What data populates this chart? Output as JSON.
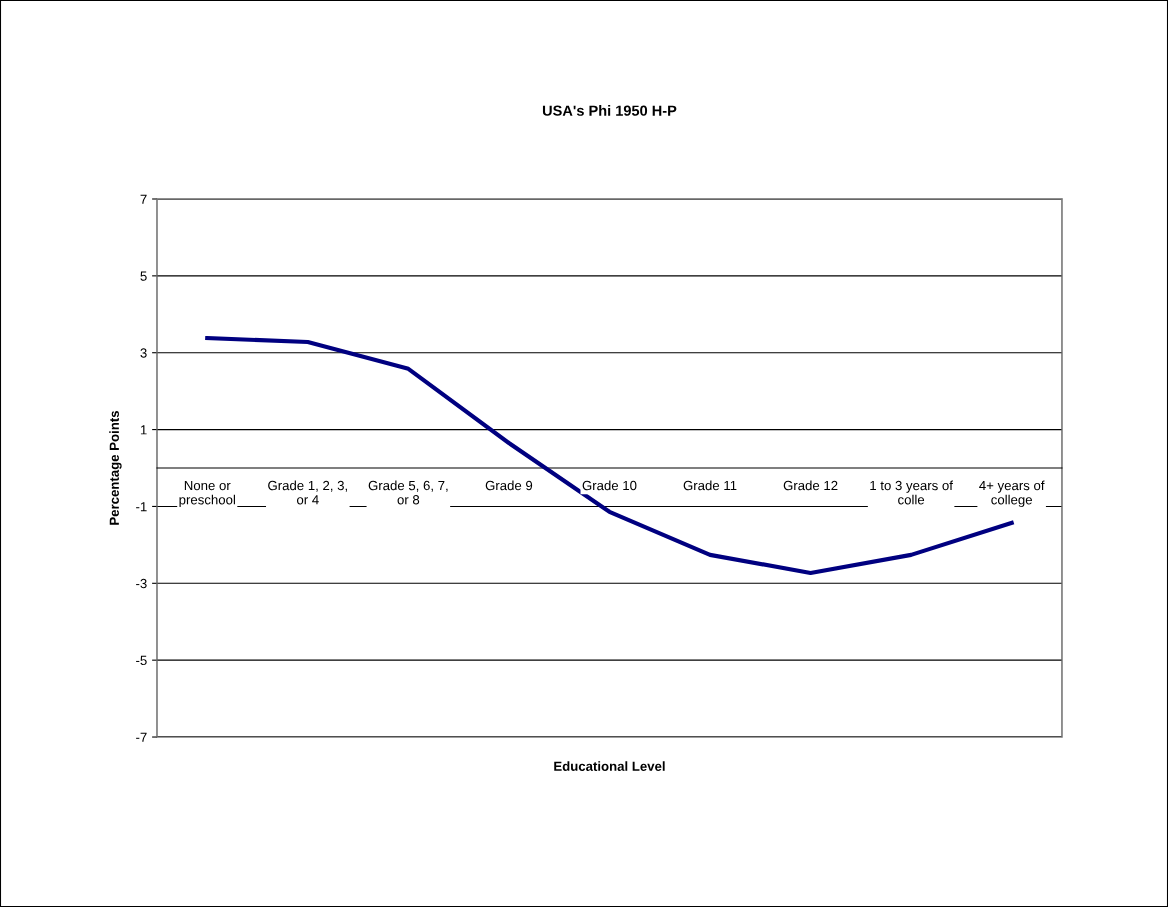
{
  "chart_data": {
    "type": "line",
    "title": "USA's Phi 1950 H-P",
    "xlabel": "Educational Level",
    "ylabel": "Percentage Points",
    "categories": [
      "None or\npreschool",
      "Grade 1, 2, 3,\nor 4",
      "Grade 5, 6, 7,\nor 8",
      "Grade 9",
      "Grade 10",
      "Grade 11",
      "Grade 12",
      "1 to 3 years of\ncolle",
      "4+ years of\ncollege"
    ],
    "series": [
      {
        "color": "#000080",
        "values": [
          3.38,
          3.28,
          2.58,
          0.65,
          -1.14,
          -2.26,
          -2.73,
          -2.26,
          -1.43
        ]
      }
    ],
    "ylim": [
      -7,
      7
    ],
    "yticks": [
      -7,
      -5,
      -3,
      -1,
      1,
      3,
      5,
      7
    ],
    "grid": "y",
    "marker": "none",
    "line_style": "solid"
  }
}
